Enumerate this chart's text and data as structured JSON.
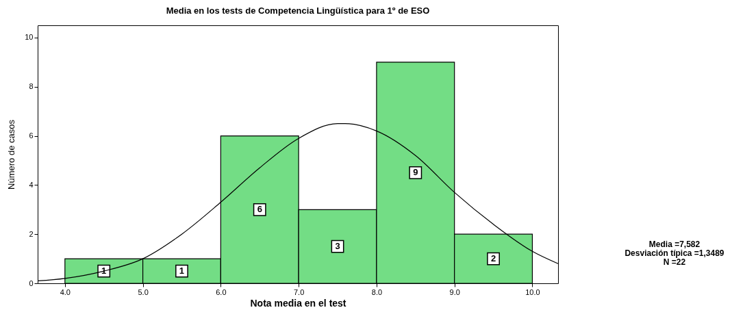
{
  "chart_data": {
    "type": "histogram",
    "title": "Media en los tests de Competencia Lingüística para 1º de ESO",
    "xlabel": "Nota media en el test",
    "ylabel": "Número de casos",
    "bins": [
      4,
      5,
      6,
      7,
      8,
      9,
      10
    ],
    "values": [
      1,
      1,
      6,
      3,
      9,
      2
    ],
    "color": "#73dd85",
    "value_labels": [
      "1",
      "1",
      "6",
      "3",
      "9",
      "2"
    ],
    "series": [
      {
        "type": "line",
        "color": "#000000",
        "x": [
          3.65,
          4,
          4.5,
          5,
          5.5,
          6,
          6.5,
          7,
          7.5,
          7.6,
          8,
          8.5,
          9,
          9.5,
          10,
          10.33
        ],
        "values": [
          0.1,
          0.2,
          0.5,
          1.0,
          2.0,
          3.3,
          4.7,
          5.9,
          6.5,
          6.5,
          6.2,
          5.2,
          3.7,
          2.4,
          1.3,
          0.8
        ]
      }
    ],
    "xlim": [
      3.65,
      10.33
    ],
    "ylim": [
      0,
      10.5
    ],
    "xticks": [
      {
        "value": 4,
        "label": "4.0"
      },
      {
        "value": 5,
        "label": "5.0"
      },
      {
        "value": 6,
        "label": "6.0"
      },
      {
        "value": 7,
        "label": "7.0"
      },
      {
        "value": 8,
        "label": "8.0"
      },
      {
        "value": 9,
        "label": "9.0"
      },
      {
        "value": 10,
        "label": "10.0"
      }
    ],
    "yticks": [
      0,
      2,
      4,
      6,
      8,
      10
    ],
    "annotations": [
      "Media =7,582",
      "Desviación típica =1,3489",
      "N =22"
    ],
    "grid": false,
    "marker": "none",
    "line_style": "solid"
  }
}
